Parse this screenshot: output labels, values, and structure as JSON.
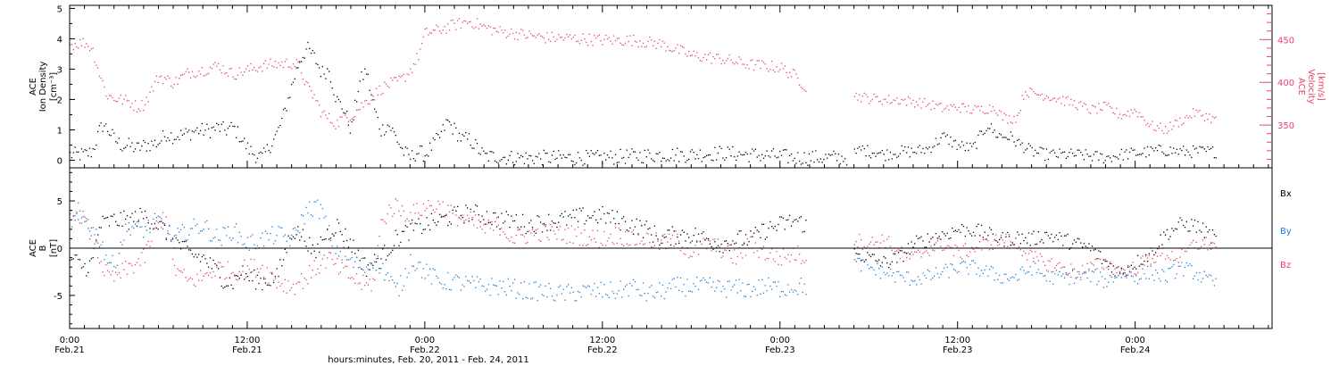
{
  "colors": {
    "black": "#000000",
    "blue": "#1c7fd6",
    "red": "#e8436a"
  },
  "chart_data": [
    {
      "type": "scatter",
      "panel": "ace-ion-density-velocity",
      "ylabel": [
        "ACE",
        "Ion Density",
        "[cm⁻³]"
      ],
      "ylim": [
        -0.25,
        5.1
      ],
      "yticks": [
        0,
        1,
        2,
        3,
        4,
        5
      ],
      "y2label": [
        "ACE",
        "Velocity",
        "[km/s]"
      ],
      "y2lim": [
        300,
        490
      ],
      "y2ticks": [
        350,
        400,
        450
      ],
      "series": [
        {
          "color": "black",
          "axis": "left",
          "spread": 0.25,
          "x": [
            0,
            2,
            3,
            4,
            4.5,
            5.5,
            6,
            7,
            8,
            9,
            10,
            12,
            13,
            14,
            16,
            17,
            18,
            19,
            20,
            21,
            22,
            23,
            24,
            25,
            26,
            27,
            28,
            29,
            30,
            31,
            32,
            33,
            34,
            35,
            36,
            37,
            38,
            39,
            40,
            41,
            42,
            43,
            44,
            45,
            46,
            47,
            48,
            50,
            51,
            52,
            53,
            54,
            56,
            60,
            64,
            68,
            72,
            76,
            80,
            84,
            88,
            92,
            96,
            98,
            99,
            99.5,
            105
          ],
          "y": [
            0.2,
            0.2,
            0.3,
            1.0,
            1.2,
            0.9,
            0.7,
            0.5,
            0.5,
            0.4,
            0.5,
            0.6,
            0.9,
            0.8,
            0.9,
            1.0,
            1.0,
            1.0,
            1.1,
            1.0,
            1.1,
            0.8,
            0.4,
            0.2,
            0.1,
            0.5,
            0.9,
            1.6,
            2.5,
            3.3,
            3.7,
            3.4,
            2.9,
            3.0,
            2.0,
            1.7,
            1.0,
            2.5,
            3.0,
            1.8,
            1.0,
            1.2,
            0.8,
            0.3,
            0.1,
            0.3,
            0.2,
            0.8,
            1.3,
            1.0,
            0.7,
            0.7,
            0.15,
            0.1,
            0.1,
            0.1,
            0.1,
            0.15,
            0.2,
            0.2,
            0.25,
            0.2,
            0.15,
            0.1,
            0.1,
            0.1,
            0.1
          ]
        },
        {
          "color": "black",
          "axis": "left",
          "spread": 0.2,
          "x": [
            106,
            107,
            108,
            109,
            110,
            112,
            114,
            116,
            118,
            120,
            122,
            124,
            125,
            126,
            127,
            128,
            130,
            132,
            136,
            140,
            142,
            144,
            146,
            148,
            150,
            152,
            155
          ],
          "y": [
            0.2,
            0.4,
            0.3,
            0.3,
            0.2,
            0.3,
            0.3,
            0.4,
            0.8,
            0.5,
            0.4,
            1.2,
            0.9,
            0.8,
            0.8,
            0.6,
            0.3,
            0.2,
            0.2,
            0.1,
            0.2,
            0.25,
            0.3,
            0.35,
            0.3,
            0.3,
            0.3
          ]
        },
        {
          "color": "red",
          "axis": "right",
          "spread": 7,
          "x": [
            0,
            2,
            3,
            4,
            5,
            6,
            7,
            8,
            9,
            10,
            12,
            14,
            16,
            18,
            20,
            22,
            24,
            26,
            28,
            30,
            31,
            32,
            33,
            34,
            35,
            36,
            37,
            38,
            39,
            40,
            41,
            42,
            43,
            44,
            45,
            46,
            47,
            48,
            50,
            52,
            54,
            56,
            58,
            60,
            64,
            68,
            72,
            76,
            80,
            84,
            88,
            92,
            96,
            98,
            99.5
          ],
          "y": [
            445,
            447,
            440,
            410,
            385,
            382,
            380,
            378,
            372,
            375,
            408,
            400,
            412,
            415,
            420,
            410,
            415,
            420,
            422,
            423,
            420,
            395,
            384,
            365,
            358,
            352,
            360,
            362,
            370,
            378,
            385,
            393,
            398,
            400,
            405,
            415,
            430,
            458,
            462,
            468,
            472,
            465,
            460,
            458,
            453,
            452,
            450,
            450,
            445,
            432,
            428,
            421,
            418,
            408,
            395
          ]
        },
        {
          "color": "red",
          "axis": "right",
          "spread": 6,
          "x": [
            106,
            108,
            110,
            112,
            114,
            116,
            118,
            120,
            122,
            124,
            125,
            126,
            127,
            128,
            129,
            130,
            132,
            134,
            136,
            138,
            140,
            142,
            144,
            146,
            148,
            150,
            152,
            154,
            155
          ],
          "y": [
            385,
            382,
            380,
            380,
            378,
            375,
            370,
            372,
            368,
            370,
            372,
            360,
            358,
            360,
            390,
            388,
            385,
            380,
            375,
            368,
            372,
            362,
            368,
            350,
            345,
            355,
            365,
            360,
            355
          ]
        }
      ]
    },
    {
      "type": "scatter",
      "panel": "ace-magnetic-field",
      "ylabel": [
        "ACE",
        "B",
        "[nT]"
      ],
      "ylim": [
        -8.5,
        8.5
      ],
      "yticks": [
        -5,
        0,
        5
      ],
      "zero_line": true,
      "legend": [
        "Bx",
        "By",
        "Bz"
      ],
      "series": [
        {
          "name": "Bx",
          "color": "black",
          "spread": 1.0,
          "x": [
            0,
            2,
            3,
            4,
            6,
            8,
            10,
            12,
            14,
            16,
            18,
            20,
            21,
            22,
            23,
            24,
            26,
            28,
            30,
            31,
            32,
            33,
            34,
            36,
            38,
            40,
            42,
            44,
            46,
            48,
            50,
            52,
            54,
            56,
            58,
            60,
            62,
            64,
            66,
            68,
            70,
            72,
            74,
            76,
            78,
            80,
            82,
            84,
            86,
            88,
            90,
            92,
            94,
            96,
            98,
            99.5
          ],
          "y": [
            -1.0,
            -2.0,
            -1.5,
            2.5,
            3.0,
            3.0,
            3.5,
            2.5,
            1.0,
            -0.5,
            -1.0,
            -2.5,
            -3.5,
            -3.5,
            -2.5,
            -3.0,
            -3.5,
            -3.0,
            2.0,
            1.5,
            1.0,
            -1.0,
            1.0,
            2.5,
            0.5,
            -2.0,
            -1.0,
            1.0,
            2.0,
            2.5,
            3.0,
            3.5,
            3.8,
            3.5,
            3.0,
            3.0,
            2.5,
            2.8,
            3.0,
            3.2,
            3.5,
            3.5,
            3.0,
            2.5,
            2.0,
            1.0,
            1.5,
            1.5,
            1.0,
            0.5,
            1.0,
            1.0,
            2.0,
            2.5,
            3.0,
            2.5
          ]
        },
        {
          "name": "Bx",
          "color": "black",
          "spread": 0.8,
          "x": [
            106,
            108,
            110,
            112,
            114,
            116,
            118,
            120,
            122,
            124,
            126,
            128,
            130,
            132,
            134,
            136,
            138,
            140,
            142,
            144,
            146,
            148,
            150,
            152,
            154,
            155
          ],
          "y": [
            -0.5,
            -1.0,
            -1.5,
            -1.0,
            0.5,
            1.0,
            1.5,
            2.0,
            2.0,
            1.5,
            1.0,
            1.2,
            1.0,
            1.5,
            1.0,
            0.5,
            0.0,
            -1.5,
            -2.5,
            -1.5,
            -0.5,
            1.5,
            2.5,
            2.5,
            1.5,
            0.8
          ]
        },
        {
          "name": "By",
          "color": "blue",
          "spread": 1.0,
          "x": [
            0,
            2,
            3,
            4,
            5,
            6,
            7,
            8,
            10,
            12,
            14,
            16,
            18,
            20,
            22,
            24,
            26,
            28,
            30,
            31,
            32,
            33,
            34,
            35,
            36,
            38,
            40,
            41,
            42,
            43,
            44,
            45,
            46,
            48,
            50,
            52,
            54,
            56,
            58,
            60,
            62,
            64,
            66,
            68,
            70,
            72,
            74,
            76,
            78,
            80,
            82,
            84,
            86,
            88,
            90,
            92,
            94,
            96,
            98,
            99.5
          ],
          "y": [
            3.0,
            3.0,
            2.0,
            1.0,
            -1.0,
            -2.0,
            1.0,
            2.5,
            2.0,
            3.0,
            1.0,
            2.0,
            2.5,
            1.0,
            2.0,
            0.5,
            1.0,
            1.5,
            1.0,
            2.5,
            4.0,
            4.5,
            4.0,
            1.5,
            0.0,
            -1.5,
            -2.0,
            -1.0,
            -2.0,
            -3.0,
            -4.5,
            -3.5,
            -1.0,
            -2.5,
            -3.5,
            -3.5,
            -3.8,
            -4.0,
            -4.0,
            -4.2,
            -4.5,
            -4.5,
            -4.8,
            -4.7,
            -4.5,
            -4.5,
            -4.5,
            -4.0,
            -4.8,
            -4.5,
            -4.0,
            -4.0,
            -4.0,
            -4.2,
            -4.2,
            -4.3,
            -4.0,
            -4.2,
            -4.0,
            -4.0
          ]
        },
        {
          "name": "By",
          "color": "blue",
          "spread": 0.8,
          "x": [
            106,
            108,
            110,
            112,
            114,
            116,
            118,
            120,
            122,
            124,
            126,
            128,
            130,
            132,
            134,
            136,
            138,
            140,
            142,
            144,
            146,
            148,
            150,
            152,
            154,
            155
          ],
          "y": [
            -1.5,
            -2.0,
            -2.5,
            -3.0,
            -3.2,
            -3.0,
            -2.5,
            -2.0,
            -2.0,
            -2.5,
            -3.0,
            -3.0,
            -2.0,
            -3.0,
            -3.0,
            -3.0,
            -2.8,
            -3.5,
            -2.5,
            -3.0,
            -2.5,
            -3.0,
            -2.0,
            -2.5,
            -3.5,
            -3.8
          ]
        },
        {
          "name": "Bz",
          "color": "red",
          "spread": 1.0,
          "x": [
            0,
            1,
            2,
            3,
            4,
            5,
            6,
            8,
            10,
            12,
            13,
            14,
            16,
            18,
            20,
            22,
            24,
            26,
            28,
            30,
            32,
            34,
            35,
            36,
            38,
            40,
            41,
            42,
            43,
            44,
            46,
            48,
            50,
            51,
            52,
            54,
            56,
            58,
            60,
            62,
            64,
            66,
            68,
            70,
            72,
            74,
            76,
            78,
            80,
            82,
            84,
            86,
            88,
            90,
            92,
            94,
            96,
            98,
            99.5
          ],
          "y": [
            4.0,
            4.0,
            3.0,
            1.0,
            -1.0,
            -3.0,
            -3.0,
            -2.0,
            -1.0,
            3.0,
            3.5,
            -2.0,
            -3.5,
            -3.0,
            -2.0,
            -2.5,
            -2.0,
            -2.0,
            -3.5,
            -4.0,
            -3.0,
            -1.5,
            -1.0,
            -2.0,
            -3.0,
            -4.0,
            -3.5,
            2.5,
            4.0,
            4.5,
            3.5,
            4.5,
            4.5,
            4.0,
            3.5,
            3.0,
            2.0,
            2.5,
            1.0,
            1.5,
            1.8,
            1.5,
            1.5,
            1.2,
            1.0,
            1.5,
            1.0,
            1.0,
            0.5,
            1.0,
            -0.5,
            0.5,
            0.0,
            -1.0,
            0.5,
            -0.5,
            -1.0,
            -0.5,
            -1.0
          ]
        },
        {
          "name": "Bz",
          "color": "red",
          "spread": 0.8,
          "x": [
            106,
            108,
            110,
            112,
            114,
            116,
            118,
            120,
            122,
            124,
            126,
            128,
            130,
            132,
            134,
            136,
            138,
            140,
            142,
            144,
            146,
            148,
            150,
            152,
            154,
            155
          ],
          "y": [
            1.0,
            0.5,
            1.0,
            -0.5,
            -1.0,
            0.0,
            0.5,
            -0.5,
            0.0,
            0.5,
            1.0,
            0.5,
            -1.0,
            -1.5,
            -2.0,
            -2.5,
            -2.0,
            -1.5,
            -2.5,
            -2.0,
            -1.0,
            -0.5,
            -1.0,
            0.5,
            0.5,
            0.0
          ]
        }
      ]
    }
  ],
  "x_axis": {
    "range_hours": [
      0,
      162.5
    ],
    "major_ticks": [
      {
        "h": 0,
        "time": "0:00",
        "date": "Feb.21"
      },
      {
        "h": 24,
        "time": "12:00",
        "date": "Feb.21"
      },
      {
        "h": 48,
        "time": "0:00",
        "date": "Feb.22"
      },
      {
        "h": 72,
        "time": "12:00",
        "date": "Feb.22"
      },
      {
        "h": 96,
        "time": "0:00",
        "date": "Feb.23"
      },
      {
        "h": 120,
        "time": "12:00",
        "date": "Feb.23"
      },
      {
        "h": 144,
        "time": "0:00",
        "date": "Feb.24"
      }
    ],
    "minor_step_hours": 2,
    "title": "hours:minutes, Feb. 20, 2011 - Feb. 24, 2011"
  }
}
